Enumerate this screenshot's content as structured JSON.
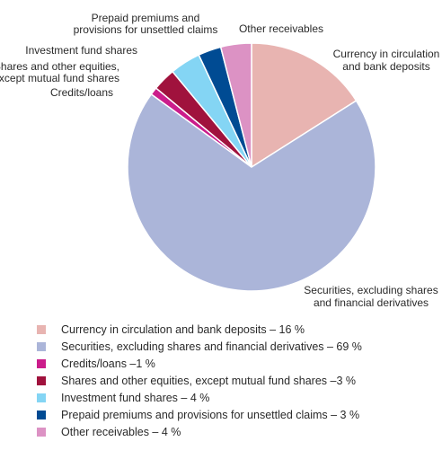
{
  "chart_data": {
    "type": "pie",
    "slices": [
      {
        "key": "currency",
        "label": [
          "Currency in circulation",
          "and bank deposits"
        ],
        "value": 16,
        "color": "#e8b4b1"
      },
      {
        "key": "securities",
        "label": [
          "Securities, excluding shares",
          "and financial derivatives"
        ],
        "value": 69,
        "color": "#abb5d9"
      },
      {
        "key": "credits",
        "label": [
          "Credits/loans"
        ],
        "value": 1,
        "color": "#cb1d8b"
      },
      {
        "key": "shares",
        "label": [
          "Shares and other equities,",
          "except mutual fund shares"
        ],
        "value": 3,
        "color": "#a0123d"
      },
      {
        "key": "investment",
        "label": [
          "Investment fund shares"
        ],
        "value": 4,
        "color": "#84d5f4"
      },
      {
        "key": "prepaid",
        "label": [
          "Prepaid premiums and",
          "provisions for unsettled claims"
        ],
        "value": 3,
        "color": "#004b93"
      },
      {
        "key": "other",
        "label": [
          "Other receivables"
        ],
        "value": 4,
        "color": "#dc92c4"
      }
    ],
    "legend": [
      "Currency in circulation and bank deposits – 16 %",
      "Securities, excluding shares and financial derivatives – 69 %",
      "Credits/loans –1 %",
      "Shares and other equities, except mutual fund shares –3 %",
      "Investment fund shares – 4 %",
      "Prepaid premiums and provisions for unsettled claims – 3 %",
      "Other receivables – 4 %"
    ],
    "legend_position": "bottom"
  }
}
